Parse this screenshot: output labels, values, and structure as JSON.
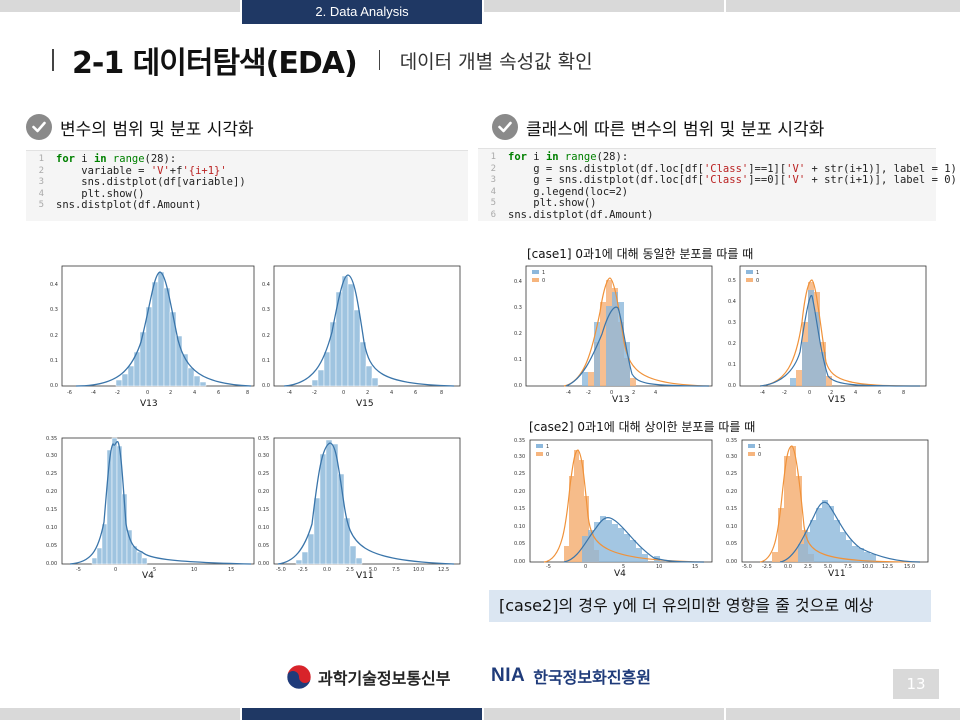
{
  "header": {
    "section_tab": "2. Data Analysis",
    "title": "2-1 데이터탐색(EDA)",
    "subtitle": "데이터 개별 속성값 확인"
  },
  "left_section": {
    "heading": "변수의 범위 및 분포 시각화",
    "code_lines": [
      "for i in range(28):",
      "    variable = 'V'+f'{i+1}'",
      "    sns.distplot(df[variable])",
      "    plt.show()",
      "sns.distplot(df.Amount)"
    ],
    "plots": [
      {
        "label": "V13",
        "x_ticks": [
          "-6",
          "-4",
          "-2",
          "0",
          "2",
          "4",
          "6",
          "8"
        ],
        "y_ticks": [
          "0.0",
          "0.1",
          "0.2",
          "0.3",
          "0.4"
        ]
      },
      {
        "label": "V15",
        "x_ticks": [
          "-4",
          "-2",
          "0",
          "2",
          "4",
          "6",
          "8"
        ],
        "y_ticks": [
          "0.0",
          "0.1",
          "0.2",
          "0.3",
          "0.4"
        ]
      },
      {
        "label": "V4",
        "x_ticks": [
          "-5",
          "0",
          "5",
          "10",
          "15"
        ],
        "y_ticks": [
          "0.00",
          "0.05",
          "0.10",
          "0.15",
          "0.20",
          "0.25",
          "0.30",
          "0.35"
        ]
      },
      {
        "label": "V11",
        "x_ticks": [
          "-5.0",
          "-2.5",
          "0.0",
          "2.5",
          "5.0",
          "7.5",
          "10.0",
          "12.5"
        ],
        "y_ticks": [
          "0.00",
          "0.05",
          "0.10",
          "0.15",
          "0.20",
          "0.25",
          "0.30",
          "0.35"
        ]
      }
    ]
  },
  "right_section": {
    "heading": "클래스에 따른 변수의 범위 및 분포 시각화",
    "code_lines": [
      "for i in range(28):",
      "    g = sns.distplot(df.loc[df['Class']==1]['V' + str(i+1)], label = 1)",
      "    g = sns.distplot(df.loc[df['Class']==0]['V' + str(i+1)], label = 0)",
      "    g.legend(loc=2)",
      "    plt.show()",
      "sns.distplot(df.Amount)"
    ],
    "case1_label": "[case1] 0과1에 대해 동일한 분포를 따를 때",
    "case2_label": "[case2] 0과1에 대해 상이한 분포를 따를 때",
    "legend": [
      "1",
      "0"
    ],
    "plots": [
      {
        "label": "V13",
        "x_ticks": [
          "-4",
          "-2",
          "0",
          "2",
          "4"
        ],
        "y_ticks": [
          "0.0",
          "0.1",
          "0.2",
          "0.3",
          "0.4"
        ]
      },
      {
        "label": "V15",
        "x_ticks": [
          "-4",
          "-2",
          "0",
          "2",
          "4",
          "6",
          "8"
        ],
        "y_ticks": [
          "0.0",
          "0.1",
          "0.2",
          "0.3",
          "0.4",
          "0.5"
        ]
      },
      {
        "label": "V4",
        "x_ticks": [
          "-5",
          "0",
          "5",
          "10",
          "15"
        ],
        "y_ticks": [
          "0.00",
          "0.05",
          "0.10",
          "0.15",
          "0.20",
          "0.25",
          "0.30",
          "0.35"
        ]
      },
      {
        "label": "V11",
        "x_ticks": [
          "-5.0",
          "-2.5",
          "0.0",
          "2.5",
          "5.0",
          "7.5",
          "10.0",
          "12.5",
          "15.0"
        ],
        "y_ticks": [
          "0.00",
          "0.05",
          "0.10",
          "0.15",
          "0.20",
          "0.25",
          "0.30",
          "0.35"
        ]
      }
    ],
    "conclusion": "[case2]의 경우 y에 더 유의미한 영향을 줄 것으로 예상"
  },
  "footer": {
    "msit": "과학기술정보통신부",
    "nia": "NIA",
    "nia_kr": "한국정보화진흥원",
    "page": "13"
  },
  "colors": {
    "navy": "#1f3864",
    "blue_series": "#4c8dc4",
    "orange_series": "#f0923a",
    "conclusion_bg": "#dbe6f2"
  }
}
